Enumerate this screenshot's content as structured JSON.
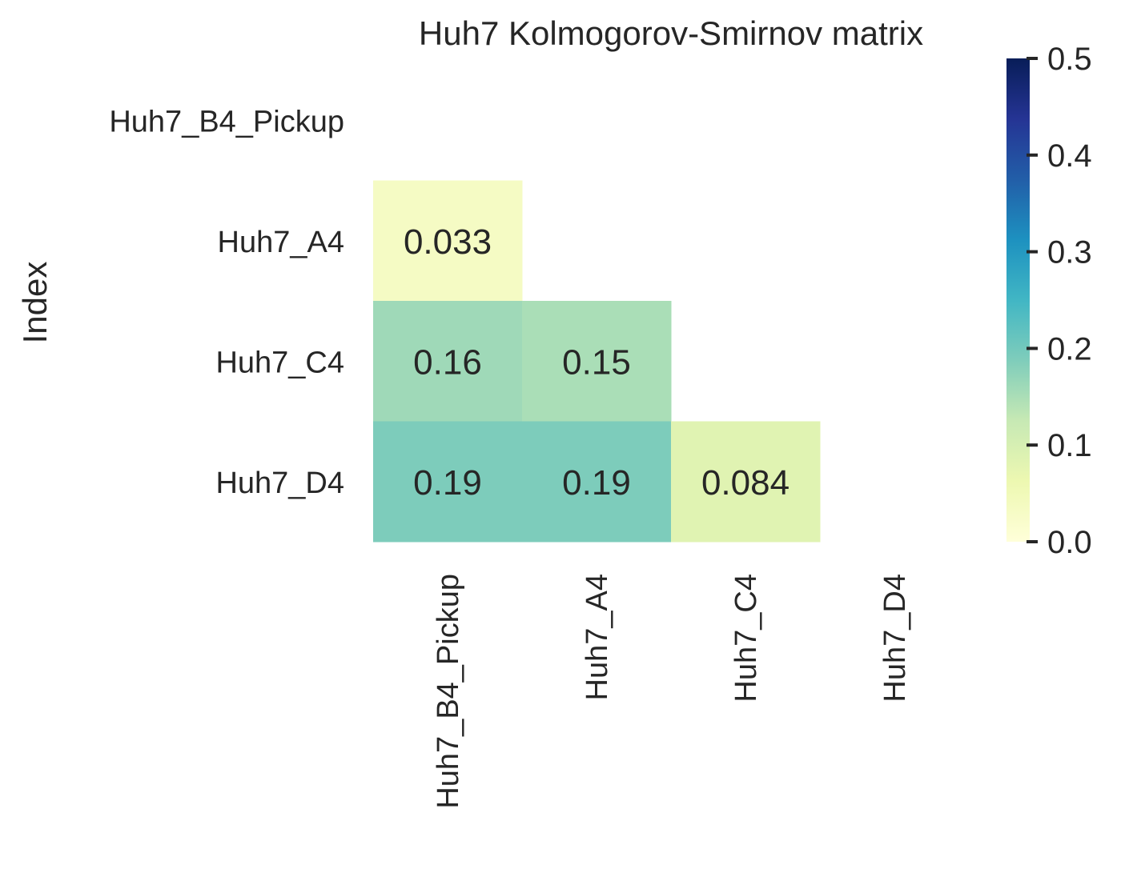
{
  "chart_data": {
    "type": "heatmap",
    "title": "Huh7 Kolmogorov-Smirnov matrix",
    "ylabel": "Index",
    "xlabel": "",
    "rows": [
      "Huh7_B4_Pickup",
      "Huh7_A4",
      "Huh7_C4",
      "Huh7_D4"
    ],
    "columns": [
      "Huh7_B4_Pickup",
      "Huh7_A4",
      "Huh7_C4",
      "Huh7_D4"
    ],
    "mask": "upper triangle including diagonal",
    "cells": [
      {
        "row": "Huh7_A4",
        "col": "Huh7_B4_Pickup",
        "value": 0.033,
        "label": "0.033"
      },
      {
        "row": "Huh7_C4",
        "col": "Huh7_B4_Pickup",
        "value": 0.16,
        "label": "0.16"
      },
      {
        "row": "Huh7_C4",
        "col": "Huh7_A4",
        "value": 0.15,
        "label": "0.15"
      },
      {
        "row": "Huh7_D4",
        "col": "Huh7_B4_Pickup",
        "value": 0.19,
        "label": "0.19"
      },
      {
        "row": "Huh7_D4",
        "col": "Huh7_A4",
        "value": 0.19,
        "label": "0.19"
      },
      {
        "row": "Huh7_D4",
        "col": "Huh7_C4",
        "value": 0.084,
        "label": "0.084"
      }
    ],
    "colorbar": {
      "colormap": "YlGnBu",
      "range": [
        0,
        0.5
      ],
      "ticks": [
        "0.0",
        "0.1",
        "0.2",
        "0.3",
        "0.4",
        "0.5"
      ],
      "tick_values": [
        0,
        0.1,
        0.2,
        0.3,
        0.4,
        0.5
      ],
      "colors": [
        "#ffffd9",
        "#edf8b1",
        "#c7e9b4",
        "#7fcdbb",
        "#41b6c4",
        "#1d91c0",
        "#225ea8",
        "#253494",
        "#081d58"
      ]
    },
    "grid": false
  }
}
